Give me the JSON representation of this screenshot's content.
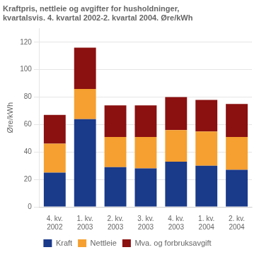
{
  "chart_data": {
    "type": "bar",
    "stacked": true,
    "title": "Kraftpris, nettleie og avgifter for husholdninger,\nkvartalsvis. 4. kvartal 2002-2. kvartal 2004. Øre/kWh",
    "ylabel": "Øre/kWh",
    "categories": [
      "4. kv.\n2002",
      "1. kv.\n2003",
      "2. kv.\n2003",
      "3. kv.\n2003",
      "4. kv.\n2003",
      "1. kv.\n2004",
      "2. kv.\n2004"
    ],
    "series": [
      {
        "name": "Kraft",
        "color": "#1a3a8a",
        "values": [
          25,
          64,
          29,
          28,
          33,
          30,
          27
        ]
      },
      {
        "name": "Nettleie",
        "color": "#f5a030",
        "values": [
          21,
          22,
          22,
          23,
          23,
          25,
          24
        ]
      },
      {
        "name": "Mva. og forbruksavgift",
        "color": "#8b1010",
        "values": [
          21,
          30,
          23,
          23,
          24,
          23,
          24
        ]
      }
    ],
    "ylim": [
      0,
      130
    ],
    "yticks": [
      0,
      20,
      40,
      60,
      80,
      100,
      120
    ],
    "grid": true,
    "legend": "bottom"
  }
}
